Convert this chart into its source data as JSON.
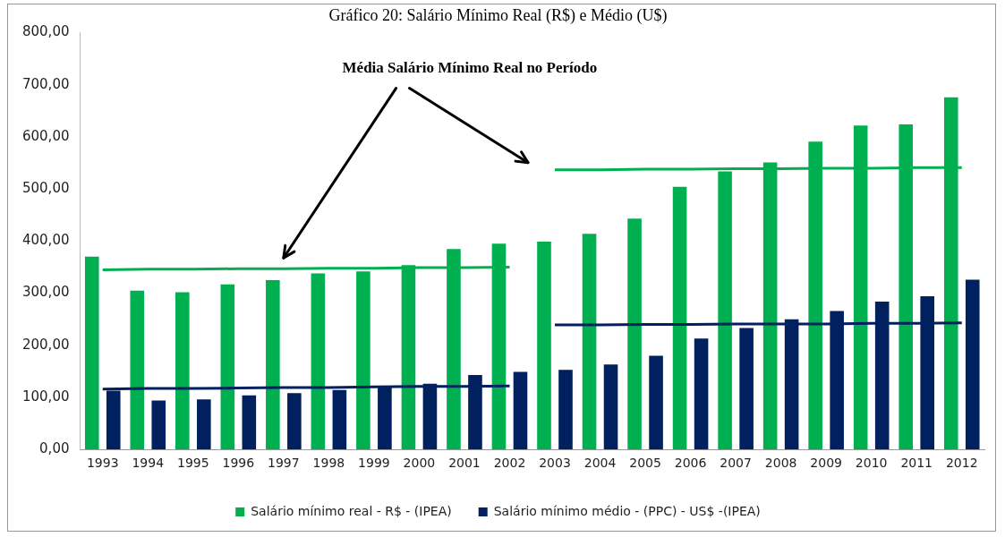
{
  "chart_data": {
    "type": "bar",
    "title": "Gráfico 20: Salário Mínimo Real (R$) e Médio (U$)",
    "categories": [
      "1993",
      "1994",
      "1995",
      "1996",
      "1997",
      "1998",
      "1999",
      "2000",
      "2001",
      "2002",
      "2003",
      "2004",
      "2005",
      "2006",
      "2007",
      "2008",
      "2009",
      "2010",
      "2011",
      "2012"
    ],
    "series": [
      {
        "name": "Salário mínimo real - R$ - (IPEA)",
        "color": "#00b050",
        "values": [
          370,
          305,
          302,
          317,
          325,
          338,
          342,
          354,
          385,
          395,
          399,
          414,
          443,
          504,
          534,
          551,
          591,
          622,
          624,
          676
        ]
      },
      {
        "name": "Salário mínimo médio - (PPC) - US$ -(IPEA)",
        "color": "#002060",
        "values": [
          113,
          94,
          96,
          104,
          108,
          114,
          120,
          126,
          143,
          149,
          153,
          163,
          180,
          213,
          233,
          250,
          266,
          284,
          294,
          326
        ]
      },
      {
        "type": "line",
        "color": "#00b050",
        "values": [
          345,
          346,
          346,
          347,
          347,
          348,
          348,
          349,
          349,
          350,
          null,
          null,
          null,
          null,
          null,
          null,
          null,
          null,
          null,
          null
        ]
      },
      {
        "type": "line",
        "color": "#00b050",
        "values": [
          null,
          null,
          null,
          null,
          null,
          null,
          null,
          null,
          null,
          null,
          537,
          537,
          538,
          538,
          539,
          539,
          540,
          540,
          541,
          541
        ]
      },
      {
        "type": "line",
        "color": "#002060",
        "values": [
          116,
          117,
          117,
          118,
          119,
          119,
          120,
          121,
          121,
          122,
          null,
          null,
          null,
          null,
          null,
          null,
          null,
          null,
          null,
          null
        ]
      },
      {
        "type": "line",
        "color": "#002060",
        "values": [
          null,
          null,
          null,
          null,
          null,
          null,
          null,
          null,
          null,
          null,
          239,
          239,
          240,
          240,
          241,
          241,
          241,
          242,
          242,
          243
        ]
      }
    ],
    "ylim": [
      0,
      800
    ],
    "yticks": [
      {
        "value": 0,
        "label": "0,00"
      },
      {
        "value": 100,
        "label": "100,00"
      },
      {
        "value": 200,
        "label": "200,00"
      },
      {
        "value": 300,
        "label": "300,00"
      },
      {
        "value": 400,
        "label": "400,00"
      },
      {
        "value": 500,
        "label": "500,00"
      },
      {
        "value": 600,
        "label": "600,00"
      },
      {
        "value": 700,
        "label": "700,00"
      },
      {
        "value": 800,
        "label": "800,00"
      }
    ],
    "grid": false,
    "legend": "bottom",
    "marker": "none",
    "line_style": "solid",
    "annotations": [
      "Média Salário Mínimo Real no Período"
    ]
  }
}
